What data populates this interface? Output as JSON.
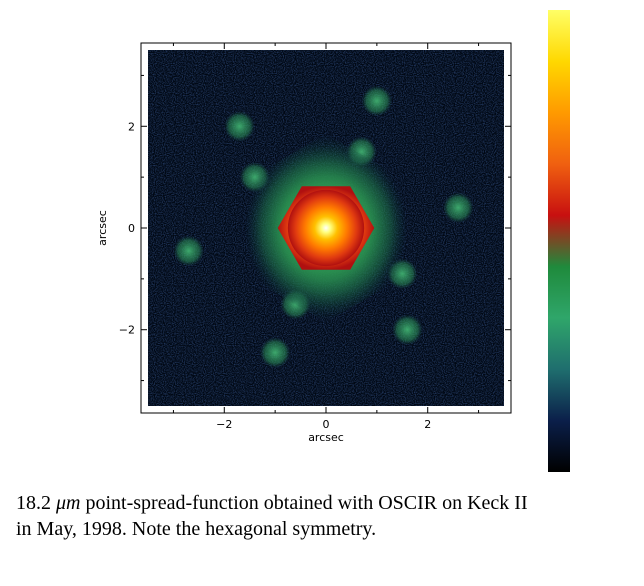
{
  "chart_data": {
    "type": "heatmap",
    "title": "",
    "xlabel": "arcsec",
    "ylabel": "arcsec",
    "xlim": [
      -3.5,
      3.5
    ],
    "ylim": [
      -3.5,
      3.5
    ],
    "xticks": [
      -2,
      0,
      2
    ],
    "yticks": [
      -2,
      0,
      2
    ],
    "xtick_labels": [
      "−2",
      "0",
      "2"
    ],
    "ytick_labels": [
      "−2",
      "0",
      "2"
    ],
    "colorbar": {
      "position": "right",
      "colors": [
        "#000000",
        "#0b1f4a",
        "#1f6e6e",
        "#2fa66a",
        "#1f8a3c",
        "#c81010",
        "#f06010",
        "#ff9a00",
        "#ffd800",
        "#ffff66"
      ]
    },
    "psf": {
      "core_center": [
        0.0,
        0.0
      ],
      "core_color_center": "#ffffff",
      "core_color_mid": "#ffd000",
      "core_color_outer": "#ff5000",
      "ring_color": "#c01818",
      "halo_color": "#2e9a57",
      "background_color": "#000814",
      "knots": [
        {
          "x": 1.0,
          "y": 2.5
        },
        {
          "x": -1.7,
          "y": 2.0
        },
        {
          "x": 2.6,
          "y": 0.4
        },
        {
          "x": -2.7,
          "y": -0.45
        },
        {
          "x": 1.6,
          "y": -2.0
        },
        {
          "x": -1.0,
          "y": -2.45
        },
        {
          "x": 0.7,
          "y": 1.5
        },
        {
          "x": -1.4,
          "y": 1.0
        },
        {
          "x": -0.6,
          "y": -1.5
        },
        {
          "x": 1.5,
          "y": -0.9
        }
      ]
    }
  },
  "caption": {
    "line1_pre": "18.2 ",
    "line1_unit": "μm",
    "line1_post": " point-spread-function obtained with OSCIR on Keck II",
    "line2": "in May, 1998. Note the hexagonal symmetry."
  }
}
